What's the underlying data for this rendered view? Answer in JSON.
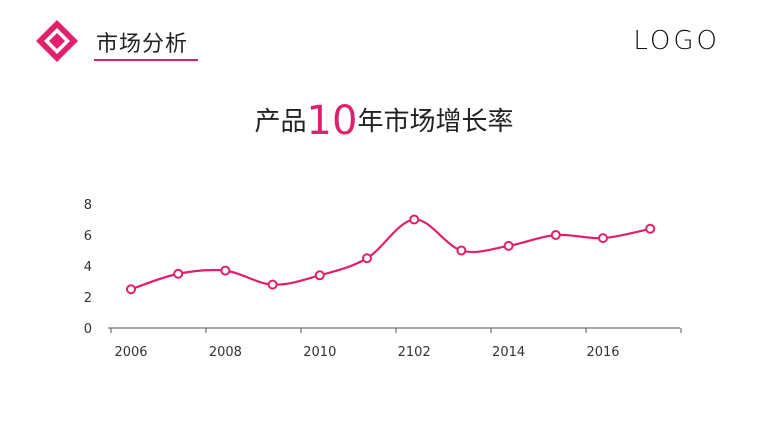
{
  "header": {
    "title": "市场分析",
    "logo": "LOGO"
  },
  "title_parts": {
    "prefix": "产品",
    "highlight": "10",
    "suffix": "年市场增长率"
  },
  "colors": {
    "accent": "#e0206d"
  },
  "chart_data": {
    "type": "line",
    "title": "产品10年市场增长率",
    "xlabel": "",
    "ylabel": "",
    "ylim": [
      0,
      8
    ],
    "yticks": [
      0,
      2,
      4,
      6,
      8
    ],
    "x_tick_labels": [
      "2006",
      "2008",
      "2010",
      "2102",
      "2014",
      "2016"
    ],
    "series": [
      {
        "values": [
          2.5,
          3.5,
          3.7,
          2.8,
          3.4,
          4.5,
          7.0,
          5.0,
          5.3,
          6.0,
          5.8,
          6.4
        ]
      }
    ],
    "grid": false,
    "legend": "none"
  }
}
